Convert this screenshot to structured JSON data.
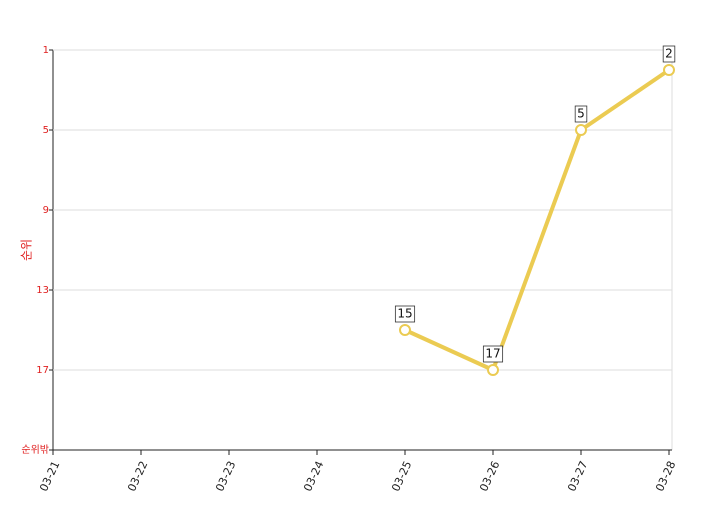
{
  "chart_data": {
    "type": "line",
    "y_label": "순위",
    "categories": [
      "03-21",
      "03-22",
      "03-23",
      "03-24",
      "03-25",
      "03-26",
      "03-27",
      "03-28"
    ],
    "series": [
      {
        "color": "#ebcb52",
        "values": [
          null,
          null,
          null,
          null,
          15,
          17,
          5,
          2
        ]
      }
    ],
    "ylim": [
      21,
      1
    ],
    "yticks": [
      1,
      5,
      9,
      13,
      17,
      {
        "value": 21,
        "label": "순위밖"
      }
    ],
    "grid": true
  }
}
